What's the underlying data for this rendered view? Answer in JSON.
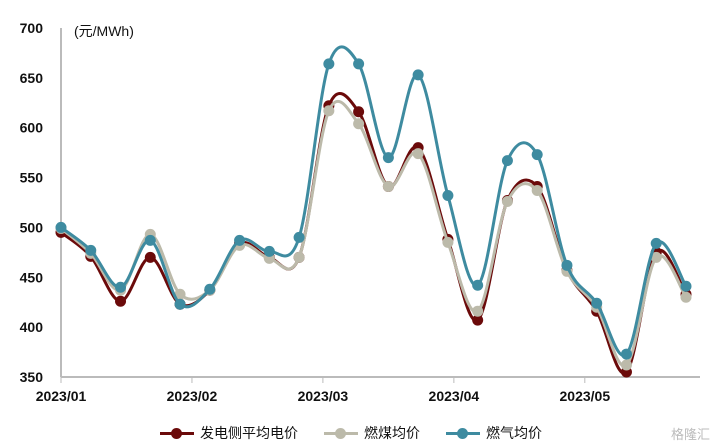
{
  "chart_data": {
    "type": "line",
    "title": "",
    "unit_label": "(元/MWh)",
    "ylim": [
      350,
      700
    ],
    "yticks": [
      350,
      400,
      450,
      500,
      550,
      600,
      650,
      700
    ],
    "xtick_labels": [
      "2023/01",
      "2023/02",
      "2023/03",
      "2023/04",
      "2023/05"
    ],
    "xtick_index": [
      0,
      4.4,
      8.8,
      13.2,
      17.6
    ],
    "series": [
      {
        "name": "发电侧平均电价",
        "color": "#6b0a0a",
        "values": [
          495,
          471,
          426,
          470,
          423,
          437,
          484,
          470,
          470,
          622,
          616,
          541,
          580,
          488,
          407,
          527,
          541,
          457,
          416,
          355,
          475,
          433
        ]
      },
      {
        "name": "燃煤均价",
        "color": "#bcbaaa",
        "values": [
          499,
          474,
          437,
          493,
          433,
          437,
          482,
          469,
          470,
          617,
          604,
          541,
          574,
          485,
          416,
          526,
          537,
          456,
          420,
          362,
          470,
          430
        ]
      },
      {
        "name": "燃气均价",
        "color": "#3e8ba0",
        "values": [
          500,
          477,
          440,
          487,
          423,
          438,
          487,
          476,
          490,
          664,
          664,
          570,
          653,
          532,
          442,
          567,
          573,
          462,
          424,
          373,
          484,
          441
        ]
      }
    ],
    "legend_position": "bottom"
  },
  "watermark": "格隆汇"
}
